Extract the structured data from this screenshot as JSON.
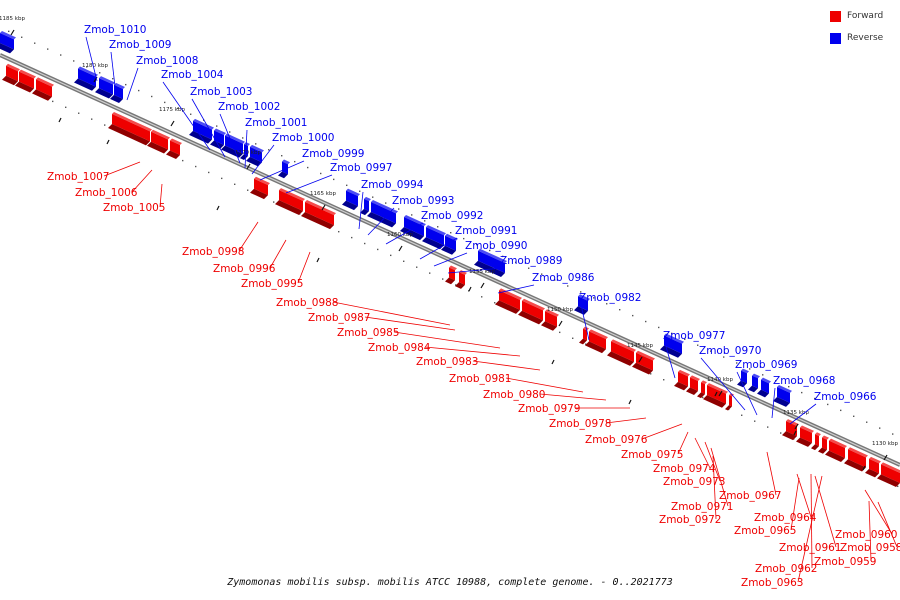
{
  "caption": "Zymomonas mobilis subsp. mobilis ATCC 10988, complete genome. - 0..2021773",
  "legend": [
    {
      "label": "Forward",
      "color": "#ee0000"
    },
    {
      "label": "Reverse",
      "color": "#0000ee"
    }
  ],
  "colors": {
    "forward": "#ee0000",
    "reverse": "#0000ee",
    "axis": "#555555",
    "forward_leader": "#ee0000",
    "reverse_leader": "#0000ee"
  },
  "scale_ticks": [
    "1185 kbp",
    "1180 kbp",
    "1175 kbp",
    "1170 kbp",
    "1165 kbp",
    "1160 kbp",
    "1155 kbp",
    "1150 kbp",
    "1145 kbp",
    "1140 kbp",
    "1135 kbp",
    "1130 kbp"
  ],
  "labels": [
    {
      "text": "Zmob_1010",
      "strand": "reverse"
    },
    {
      "text": "Zmob_1009",
      "strand": "reverse"
    },
    {
      "text": "Zmob_1008",
      "strand": "reverse"
    },
    {
      "text": "Zmob_1004",
      "strand": "reverse"
    },
    {
      "text": "Zmob_1003",
      "strand": "reverse"
    },
    {
      "text": "Zmob_1002",
      "strand": "reverse"
    },
    {
      "text": "Zmob_1001",
      "strand": "reverse"
    },
    {
      "text": "Zmob_1000",
      "strand": "reverse"
    },
    {
      "text": "Zmob_0999",
      "strand": "reverse"
    },
    {
      "text": "Zmob_0997",
      "strand": "reverse"
    },
    {
      "text": "Zmob_0994",
      "strand": "reverse"
    },
    {
      "text": "Zmob_0993",
      "strand": "reverse"
    },
    {
      "text": "Zmob_0992",
      "strand": "reverse"
    },
    {
      "text": "Zmob_0991",
      "strand": "reverse"
    },
    {
      "text": "Zmob_0990",
      "strand": "reverse"
    },
    {
      "text": "Zmob_0989",
      "strand": "reverse"
    },
    {
      "text": "Zmob_0986",
      "strand": "reverse"
    },
    {
      "text": "Zmob_0982",
      "strand": "reverse"
    },
    {
      "text": "Zmob_0977",
      "strand": "reverse"
    },
    {
      "text": "Zmob_0970",
      "strand": "reverse"
    },
    {
      "text": "Zmob_0969",
      "strand": "reverse"
    },
    {
      "text": "Zmob_0968",
      "strand": "reverse"
    },
    {
      "text": "Zmob_0966",
      "strand": "reverse"
    },
    {
      "text": "Zmob_1007",
      "strand": "forward"
    },
    {
      "text": "Zmob_1006",
      "strand": "forward"
    },
    {
      "text": "Zmob_1005",
      "strand": "forward"
    },
    {
      "text": "Zmob_0998",
      "strand": "forward"
    },
    {
      "text": "Zmob_0996",
      "strand": "forward"
    },
    {
      "text": "Zmob_0995",
      "strand": "forward"
    },
    {
      "text": "Zmob_0988",
      "strand": "forward"
    },
    {
      "text": "Zmob_0987",
      "strand": "forward"
    },
    {
      "text": "Zmob_0985",
      "strand": "forward"
    },
    {
      "text": "Zmob_0984",
      "strand": "forward"
    },
    {
      "text": "Zmob_0983",
      "strand": "forward"
    },
    {
      "text": "Zmob_0981",
      "strand": "forward"
    },
    {
      "text": "Zmob_0980",
      "strand": "forward"
    },
    {
      "text": "Zmob_0979",
      "strand": "forward"
    },
    {
      "text": "Zmob_0978",
      "strand": "forward"
    },
    {
      "text": "Zmob_0976",
      "strand": "forward"
    },
    {
      "text": "Zmob_0975",
      "strand": "forward"
    },
    {
      "text": "Zmob_0974",
      "strand": "forward"
    },
    {
      "text": "Zmob_0973",
      "strand": "forward"
    },
    {
      "text": "Zmob_0971",
      "strand": "forward"
    },
    {
      "text": "Zmob_0972",
      "strand": "forward"
    },
    {
      "text": "Zmob_0967",
      "strand": "forward"
    },
    {
      "text": "Zmob_0964",
      "strand": "forward"
    },
    {
      "text": "Zmob_0965",
      "strand": "forward"
    },
    {
      "text": "Zmob_0960",
      "strand": "forward"
    },
    {
      "text": "Zmob_0961",
      "strand": "forward"
    },
    {
      "text": "Zmob_0958",
      "strand": "forward"
    },
    {
      "text": "Zmob_0962",
      "strand": "forward"
    },
    {
      "text": "Zmob_0959",
      "strand": "forward"
    },
    {
      "text": "Zmob_0963",
      "strand": "forward"
    }
  ]
}
